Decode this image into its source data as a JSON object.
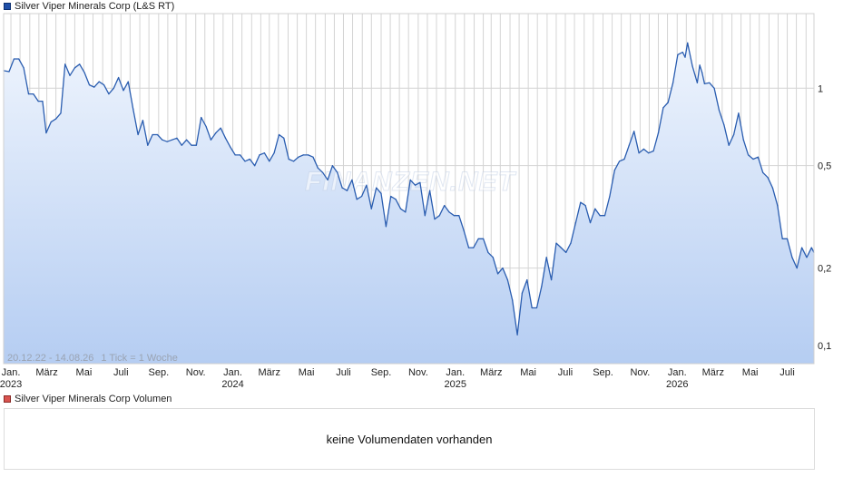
{
  "price_legend": "Silver Viper Minerals Corp (L&S RT)",
  "volume_legend": "Silver Viper Minerals Corp Volumen",
  "volume_message": "keine Volumendaten vorhanden",
  "watermark": "FINANZEN.NET",
  "colors": {
    "line": "#2a5db0",
    "fill_top": "#eef4fd",
    "fill_bottom": "#b5cdf2",
    "grid": "#d4d4d4"
  },
  "chart_data": {
    "type": "area",
    "scale": "log",
    "x_range": [
      "2022-12-20",
      "2026-08-14"
    ],
    "y_range": [
      0.085,
      1.95
    ],
    "range_label": "20.12.22 - 14.08.26",
    "tick_label": "1 Tick = 1 Woche",
    "y_ticks": [
      {
        "value": 1,
        "label": "1"
      },
      {
        "value": 0.5,
        "label": "0,5"
      },
      {
        "value": 0.2,
        "label": "0,2"
      },
      {
        "value": 0.1,
        "label": "0,1"
      }
    ],
    "x_ticks": [
      {
        "date": "2023-01-01",
        "label": "Jan.",
        "year": "2023"
      },
      {
        "date": "2023-03-01",
        "label": "März"
      },
      {
        "date": "2023-05-01",
        "label": "Mai"
      },
      {
        "date": "2023-07-01",
        "label": "Juli"
      },
      {
        "date": "2023-09-01",
        "label": "Sep."
      },
      {
        "date": "2023-11-01",
        "label": "Nov."
      },
      {
        "date": "2024-01-01",
        "label": "Jan.",
        "year": "2024"
      },
      {
        "date": "2024-03-01",
        "label": "März"
      },
      {
        "date": "2024-05-01",
        "label": "Mai"
      },
      {
        "date": "2024-07-01",
        "label": "Juli"
      },
      {
        "date": "2024-09-01",
        "label": "Sep."
      },
      {
        "date": "2024-11-01",
        "label": "Nov."
      },
      {
        "date": "2025-01-01",
        "label": "Jan.",
        "year": "2025"
      },
      {
        "date": "2025-03-01",
        "label": "März"
      },
      {
        "date": "2025-05-01",
        "label": "Mai"
      },
      {
        "date": "2025-07-01",
        "label": "Juli"
      },
      {
        "date": "2025-09-01",
        "label": "Sep."
      },
      {
        "date": "2025-11-01",
        "label": "Nov."
      },
      {
        "date": "2026-01-01",
        "label": "Jan.",
        "year": "2026"
      },
      {
        "date": "2026-03-01",
        "label": "März"
      },
      {
        "date": "2026-05-01",
        "label": "Mai"
      },
      {
        "date": "2026-07-01",
        "label": "Juli"
      }
    ],
    "series": [
      {
        "values": [
          [
            "2022-12-20",
            1.17
          ],
          [
            "2022-12-29",
            1.16
          ],
          [
            "2023-01-06",
            1.3
          ],
          [
            "2023-01-14",
            1.3
          ],
          [
            "2023-01-22",
            1.2
          ],
          [
            "2023-01-30",
            0.95
          ],
          [
            "2023-02-07",
            0.95
          ],
          [
            "2023-02-15",
            0.89
          ],
          [
            "2023-02-22",
            0.89
          ],
          [
            "2023-02-28",
            0.67
          ],
          [
            "2023-03-08",
            0.74
          ],
          [
            "2023-03-16",
            0.76
          ],
          [
            "2023-03-24",
            0.8
          ],
          [
            "2023-03-31",
            1.24
          ],
          [
            "2023-04-08",
            1.12
          ],
          [
            "2023-04-16",
            1.2
          ],
          [
            "2023-04-24",
            1.24
          ],
          [
            "2023-05-02",
            1.15
          ],
          [
            "2023-05-10",
            1.03
          ],
          [
            "2023-05-18",
            1.01
          ],
          [
            "2023-05-26",
            1.06
          ],
          [
            "2023-06-03",
            1.03
          ],
          [
            "2023-06-11",
            0.95
          ],
          [
            "2023-06-19",
            1.0
          ],
          [
            "2023-06-27",
            1.1
          ],
          [
            "2023-07-05",
            0.98
          ],
          [
            "2023-07-13",
            1.06
          ],
          [
            "2023-07-21",
            0.83
          ],
          [
            "2023-07-29",
            0.66
          ],
          [
            "2023-08-06",
            0.75
          ],
          [
            "2023-08-14",
            0.6
          ],
          [
            "2023-08-22",
            0.66
          ],
          [
            "2023-08-30",
            0.66
          ],
          [
            "2023-09-07",
            0.63
          ],
          [
            "2023-09-15",
            0.62
          ],
          [
            "2023-09-23",
            0.63
          ],
          [
            "2023-10-01",
            0.64
          ],
          [
            "2023-10-09",
            0.6
          ],
          [
            "2023-10-17",
            0.63
          ],
          [
            "2023-10-25",
            0.6
          ],
          [
            "2023-11-02",
            0.6
          ],
          [
            "2023-11-10",
            0.77
          ],
          [
            "2023-11-18",
            0.71
          ],
          [
            "2023-11-26",
            0.63
          ],
          [
            "2023-12-04",
            0.67
          ],
          [
            "2023-12-12",
            0.7
          ],
          [
            "2023-12-20",
            0.64
          ],
          [
            "2023-12-28",
            0.59
          ],
          [
            "2024-01-05",
            0.55
          ],
          [
            "2024-01-13",
            0.55
          ],
          [
            "2024-01-21",
            0.52
          ],
          [
            "2024-01-29",
            0.53
          ],
          [
            "2024-02-06",
            0.5
          ],
          [
            "2024-02-14",
            0.55
          ],
          [
            "2024-02-22",
            0.56
          ],
          [
            "2024-03-01",
            0.52
          ],
          [
            "2024-03-09",
            0.56
          ],
          [
            "2024-03-17",
            0.66
          ],
          [
            "2024-03-25",
            0.64
          ],
          [
            "2024-04-02",
            0.53
          ],
          [
            "2024-04-10",
            0.52
          ],
          [
            "2024-04-18",
            0.54
          ],
          [
            "2024-04-26",
            0.55
          ],
          [
            "2024-05-04",
            0.55
          ],
          [
            "2024-05-12",
            0.54
          ],
          [
            "2024-05-20",
            0.49
          ],
          [
            "2024-05-28",
            0.47
          ],
          [
            "2024-06-05",
            0.44
          ],
          [
            "2024-06-13",
            0.5
          ],
          [
            "2024-06-21",
            0.47
          ],
          [
            "2024-06-29",
            0.41
          ],
          [
            "2024-07-07",
            0.4
          ],
          [
            "2024-07-15",
            0.44
          ],
          [
            "2024-07-23",
            0.37
          ],
          [
            "2024-07-31",
            0.38
          ],
          [
            "2024-08-08",
            0.42
          ],
          [
            "2024-08-16",
            0.34
          ],
          [
            "2024-08-24",
            0.41
          ],
          [
            "2024-09-01",
            0.39
          ],
          [
            "2024-09-09",
            0.29
          ],
          [
            "2024-09-17",
            0.38
          ],
          [
            "2024-09-25",
            0.37
          ],
          [
            "2024-10-03",
            0.34
          ],
          [
            "2024-10-11",
            0.33
          ],
          [
            "2024-10-19",
            0.44
          ],
          [
            "2024-10-27",
            0.42
          ],
          [
            "2024-11-04",
            0.43
          ],
          [
            "2024-11-12",
            0.32
          ],
          [
            "2024-11-20",
            0.4
          ],
          [
            "2024-11-28",
            0.31
          ],
          [
            "2024-12-06",
            0.32
          ],
          [
            "2024-12-14",
            0.35
          ],
          [
            "2024-12-22",
            0.33
          ],
          [
            "2024-12-30",
            0.32
          ],
          [
            "2025-01-07",
            0.32
          ],
          [
            "2025-01-15",
            0.28
          ],
          [
            "2025-01-23",
            0.24
          ],
          [
            "2025-01-31",
            0.24
          ],
          [
            "2025-02-08",
            0.26
          ],
          [
            "2025-02-16",
            0.26
          ],
          [
            "2025-02-24",
            0.23
          ],
          [
            "2025-03-04",
            0.22
          ],
          [
            "2025-03-12",
            0.19
          ],
          [
            "2025-03-20",
            0.2
          ],
          [
            "2025-03-28",
            0.18
          ],
          [
            "2025-04-05",
            0.15
          ],
          [
            "2025-04-13",
            0.11
          ],
          [
            "2025-04-21",
            0.16
          ],
          [
            "2025-04-29",
            0.18
          ],
          [
            "2025-05-07",
            0.14
          ],
          [
            "2025-05-15",
            0.14
          ],
          [
            "2025-05-23",
            0.17
          ],
          [
            "2025-05-31",
            0.22
          ],
          [
            "2025-06-08",
            0.18
          ],
          [
            "2025-06-16",
            0.25
          ],
          [
            "2025-06-24",
            0.24
          ],
          [
            "2025-07-02",
            0.23
          ],
          [
            "2025-07-10",
            0.25
          ],
          [
            "2025-07-18",
            0.3
          ],
          [
            "2025-07-26",
            0.36
          ],
          [
            "2025-08-03",
            0.35
          ],
          [
            "2025-08-11",
            0.3
          ],
          [
            "2025-08-19",
            0.34
          ],
          [
            "2025-08-27",
            0.32
          ],
          [
            "2025-09-04",
            0.32
          ],
          [
            "2025-09-12",
            0.38
          ],
          [
            "2025-09-20",
            0.48
          ],
          [
            "2025-09-28",
            0.52
          ],
          [
            "2025-10-06",
            0.53
          ],
          [
            "2025-10-14",
            0.6
          ],
          [
            "2025-10-22",
            0.68
          ],
          [
            "2025-10-30",
            0.56
          ],
          [
            "2025-11-07",
            0.58
          ],
          [
            "2025-11-15",
            0.56
          ],
          [
            "2025-11-23",
            0.57
          ],
          [
            "2025-12-01",
            0.67
          ],
          [
            "2025-12-09",
            0.84
          ],
          [
            "2025-12-17",
            0.88
          ],
          [
            "2025-12-25",
            1.05
          ],
          [
            "2026-01-02",
            1.35
          ],
          [
            "2026-01-10",
            1.38
          ],
          [
            "2026-01-14",
            1.32
          ],
          [
            "2026-01-18",
            1.5
          ],
          [
            "2026-01-26",
            1.22
          ],
          [
            "2026-02-03",
            1.05
          ],
          [
            "2026-02-07",
            1.23
          ],
          [
            "2026-02-11",
            1.15
          ],
          [
            "2026-02-15",
            1.04
          ],
          [
            "2026-02-23",
            1.05
          ],
          [
            "2026-03-03",
            1.0
          ],
          [
            "2026-03-11",
            0.82
          ],
          [
            "2026-03-19",
            0.72
          ],
          [
            "2026-03-27",
            0.6
          ],
          [
            "2026-04-04",
            0.66
          ],
          [
            "2026-04-12",
            0.8
          ],
          [
            "2026-04-20",
            0.63
          ],
          [
            "2026-04-28",
            0.55
          ],
          [
            "2026-05-06",
            0.53
          ],
          [
            "2026-05-14",
            0.54
          ],
          [
            "2026-05-22",
            0.47
          ],
          [
            "2026-05-30",
            0.45
          ],
          [
            "2026-06-07",
            0.41
          ],
          [
            "2026-06-15",
            0.35
          ],
          [
            "2026-06-23",
            0.26
          ],
          [
            "2026-07-01",
            0.26
          ],
          [
            "2026-07-09",
            0.22
          ],
          [
            "2026-07-17",
            0.2
          ],
          [
            "2026-07-25",
            0.24
          ],
          [
            "2026-08-02",
            0.22
          ],
          [
            "2026-08-10",
            0.24
          ],
          [
            "2026-08-14",
            0.23
          ]
        ]
      }
    ]
  }
}
